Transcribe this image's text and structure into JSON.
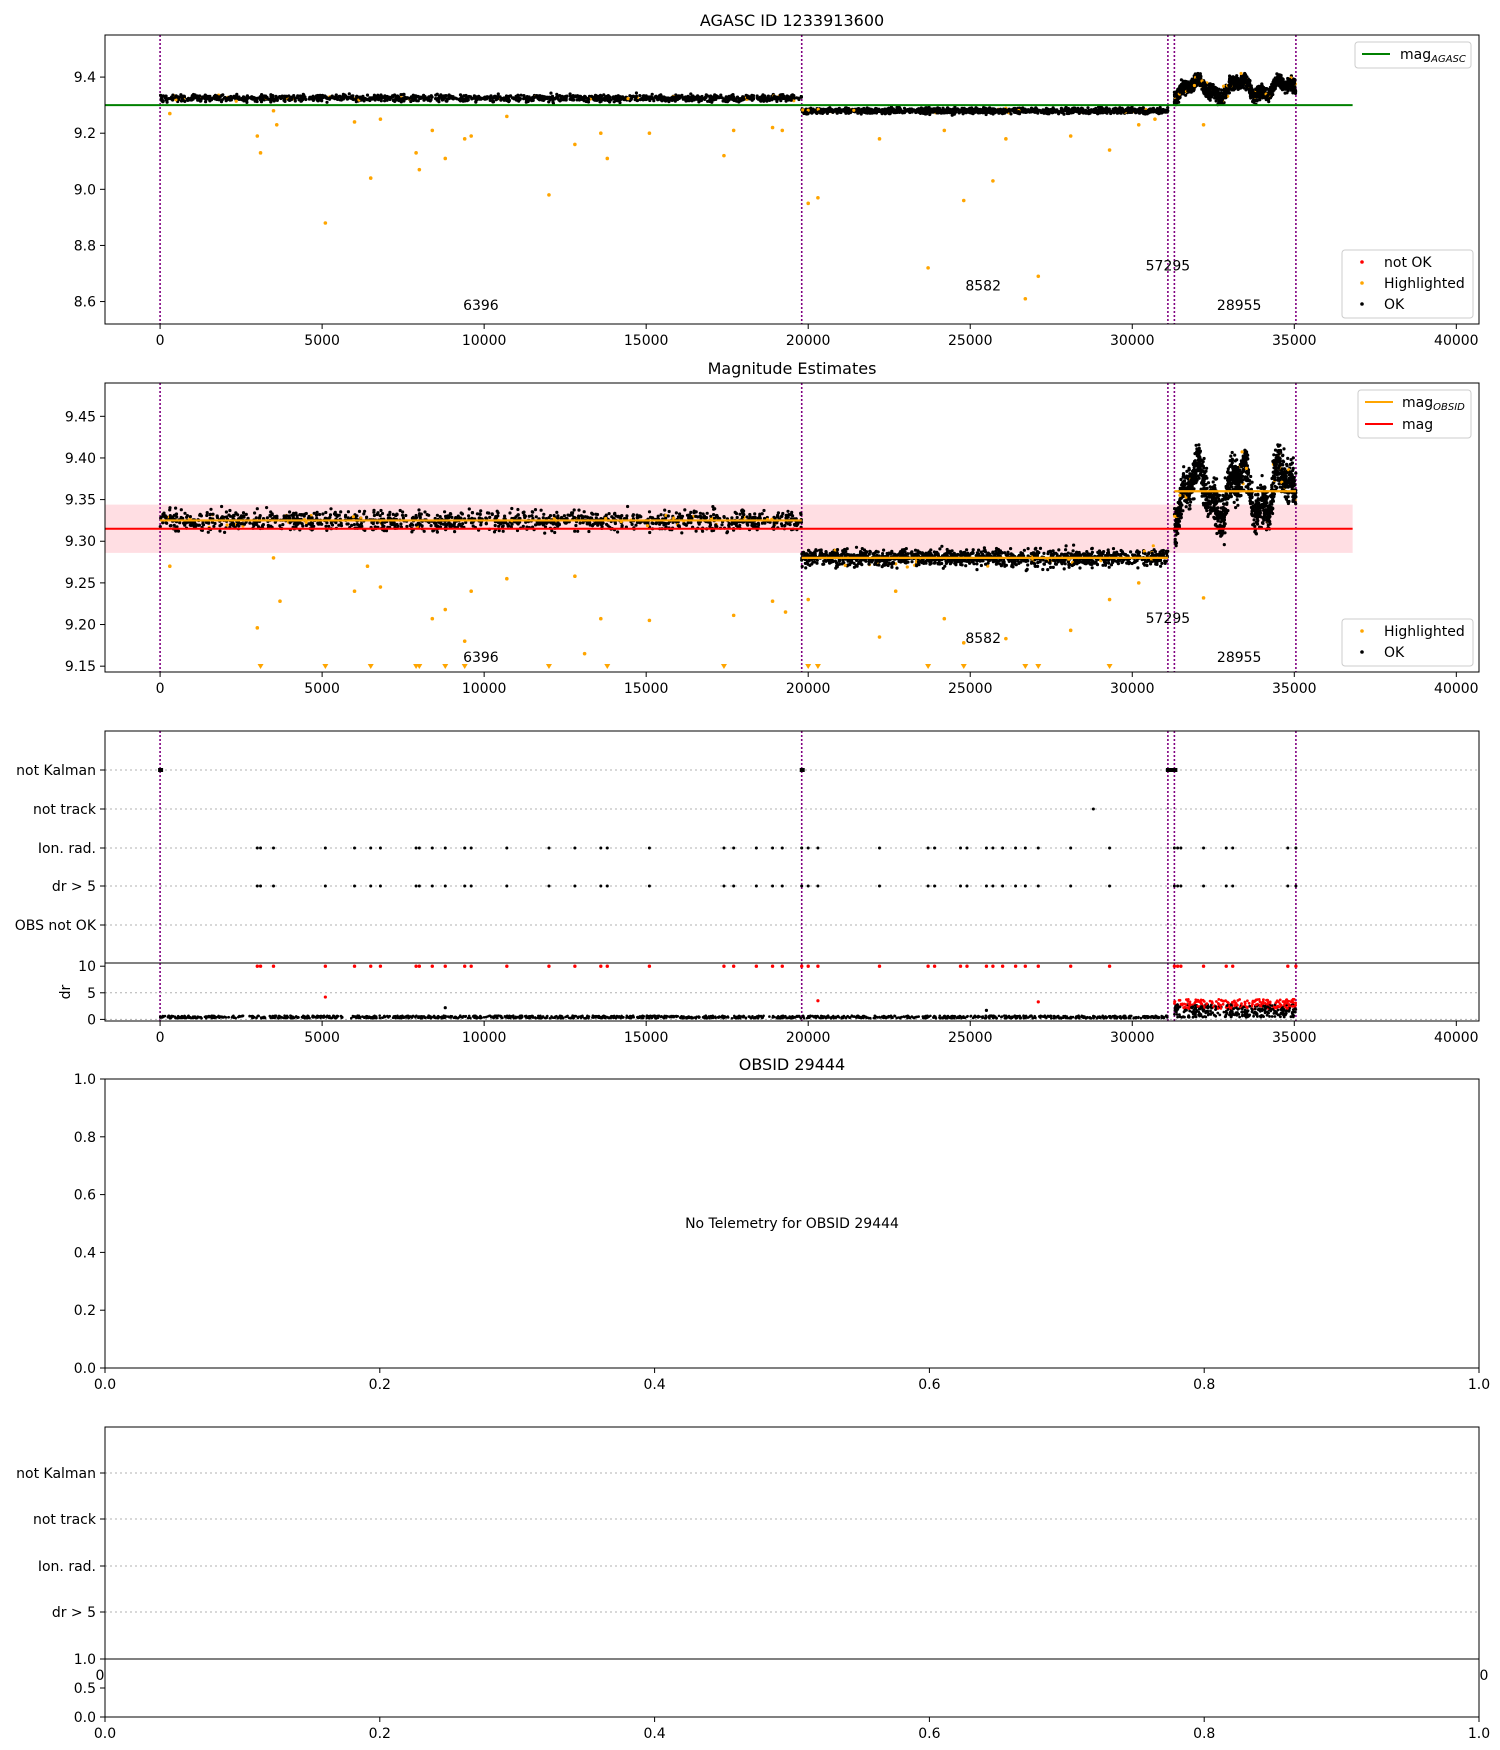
{
  "figure": {
    "vlines": [
      0,
      19800,
      31100,
      31300,
      35050
    ],
    "obsid_labels": [
      {
        "x": 9900,
        "y_mag": 8.57,
        "y_est": 9.155,
        "text": "6396"
      },
      {
        "x": 25400,
        "y_mag": 8.64,
        "y_est": 9.178,
        "text": "8582"
      },
      {
        "x": 31100,
        "y_mag": 8.71,
        "y_est": 9.202,
        "text": "57295"
      },
      {
        "x": 33300,
        "y_mag": 8.57,
        "y_est": 9.155,
        "text": "28955"
      }
    ],
    "colors": {
      "ok": "#000000",
      "highlighted": "#ffa500",
      "not_ok": "#ff0000",
      "agasc_line": "#008000",
      "mean_line": "#ff0000",
      "band": "#ffb6c1",
      "vline": "#800080"
    }
  },
  "chart_data": [
    {
      "type": "scatter",
      "title": "AGASC ID 1233913600",
      "xlim": [
        -1700,
        40700
      ],
      "ylim": [
        8.52,
        9.55
      ],
      "x_ticks": [
        0,
        5000,
        10000,
        15000,
        20000,
        25000,
        30000,
        35000,
        40000
      ],
      "y_ticks": [
        "8.6",
        "8.8",
        "9.0",
        "9.2",
        "9.4"
      ],
      "segments": [
        {
          "x0": 0,
          "x1": 19800,
          "level": 9.325,
          "spread": 0.012
        },
        {
          "x0": 19800,
          "x1": 31100,
          "level": 9.28,
          "spread": 0.01
        },
        {
          "x0": 31300,
          "x1": 35050,
          "level": 9.36,
          "spread": 0.025
        }
      ],
      "hline": {
        "y": 9.3,
        "x0": -1700,
        "x1": 36800
      },
      "highlighted_outliers": [
        [
          300,
          9.27
        ],
        [
          3000,
          9.19
        ],
        [
          3100,
          9.13
        ],
        [
          3500,
          9.28
        ],
        [
          3600,
          9.23
        ],
        [
          5100,
          8.88
        ],
        [
          6000,
          9.24
        ],
        [
          6500,
          9.04
        ],
        [
          6800,
          9.25
        ],
        [
          7900,
          9.13
        ],
        [
          8000,
          9.07
        ],
        [
          8400,
          9.21
        ],
        [
          8800,
          9.11
        ],
        [
          9400,
          9.18
        ],
        [
          9600,
          9.19
        ],
        [
          10700,
          9.26
        ],
        [
          12000,
          8.98
        ],
        [
          12800,
          9.16
        ],
        [
          13600,
          9.2
        ],
        [
          13800,
          9.11
        ],
        [
          15100,
          9.2
        ],
        [
          17400,
          9.12
        ],
        [
          17700,
          9.21
        ],
        [
          18900,
          9.22
        ],
        [
          19200,
          9.21
        ],
        [
          20000,
          8.95
        ],
        [
          20300,
          8.97
        ],
        [
          22200,
          9.18
        ],
        [
          23700,
          8.72
        ],
        [
          24200,
          9.21
        ],
        [
          24800,
          8.96
        ],
        [
          25700,
          9.03
        ],
        [
          26100,
          9.18
        ],
        [
          26700,
          8.61
        ],
        [
          27100,
          8.69
        ],
        [
          28100,
          9.19
        ],
        [
          29300,
          9.14
        ],
        [
          30200,
          9.23
        ],
        [
          30700,
          9.25
        ],
        [
          32200,
          9.23
        ]
      ],
      "legend_lines": [
        {
          "label": "mag",
          "sub": "AGASC"
        }
      ],
      "legend_points": [
        "not OK",
        "Highlighted",
        "OK"
      ]
    },
    {
      "type": "scatter",
      "title": "Magnitude Estimates",
      "xlim": [
        -1700,
        40700
      ],
      "ylim": [
        9.143,
        9.49
      ],
      "x_ticks": [
        0,
        5000,
        10000,
        15000,
        20000,
        25000,
        30000,
        35000,
        40000
      ],
      "y_ticks": [
        "9.15",
        "9.20",
        "9.25",
        "9.30",
        "9.35",
        "9.40",
        "9.45"
      ],
      "obsid_means": [
        {
          "x0": 0,
          "x1": 19800,
          "y": 9.325
        },
        {
          "x0": 19800,
          "x1": 31100,
          "y": 9.28
        },
        {
          "x0": 31300,
          "x1": 35050,
          "y": 9.36
        }
      ],
      "mean": {
        "y": 9.315,
        "band": [
          9.286,
          9.344
        ],
        "x0": -1700,
        "x1": 36800
      },
      "highlighted_outliers": [
        [
          300,
          9.27
        ],
        [
          3000,
          9.196
        ],
        [
          3500,
          9.28
        ],
        [
          3700,
          9.228
        ],
        [
          6000,
          9.24
        ],
        [
          6400,
          9.27
        ],
        [
          6800,
          9.245
        ],
        [
          8400,
          9.207
        ],
        [
          8800,
          9.218
        ],
        [
          9400,
          9.18
        ],
        [
          9600,
          9.24
        ],
        [
          10700,
          9.255
        ],
        [
          12800,
          9.258
        ],
        [
          13100,
          9.165
        ],
        [
          13600,
          9.207
        ],
        [
          15100,
          9.205
        ],
        [
          17700,
          9.211
        ],
        [
          18900,
          9.228
        ],
        [
          19300,
          9.215
        ],
        [
          20000,
          9.23
        ],
        [
          22200,
          9.185
        ],
        [
          22700,
          9.24
        ],
        [
          24200,
          9.207
        ],
        [
          24800,
          9.178
        ],
        [
          26100,
          9.183
        ],
        [
          28100,
          9.193
        ],
        [
          29300,
          9.23
        ],
        [
          30200,
          9.25
        ],
        [
          32200,
          9.232
        ]
      ],
      "clipped_markers": [
        3100,
        5100,
        6500,
        7900,
        8000,
        8800,
        9400,
        12000,
        13800,
        17400,
        20000,
        20300,
        23700,
        24800,
        26700,
        27100,
        29300
      ],
      "legend_lines": [
        {
          "label": "mag",
          "sub": "OBSID"
        },
        {
          "label": "mag",
          "sub": ""
        }
      ],
      "legend_points": [
        "Highlighted",
        "OK"
      ]
    },
    {
      "type": "scatter",
      "title": "",
      "xlim": [
        -1700,
        40700
      ],
      "flag_labels": [
        "not Kalman",
        "not track",
        "Ion. rad.",
        "dr > 5",
        "OBS not OK"
      ],
      "flag_events": {
        "not Kalman": [
          0,
          19800,
          31100,
          31200,
          31300
        ],
        "not track": [
          28800
        ],
        "Ion. rad.": [
          3000,
          3100,
          3500,
          5100,
          6000,
          6500,
          6800,
          7900,
          8000,
          8400,
          8800,
          9400,
          9600,
          10700,
          12000,
          12800,
          13600,
          13800,
          15100,
          17400,
          17700,
          18400,
          18900,
          19200,
          19800,
          20000,
          20300,
          22200,
          23700,
          23900,
          24700,
          24900,
          25500,
          25700,
          26000,
          26400,
          26700,
          27100,
          28100,
          29300,
          31300,
          31400,
          31500,
          32200,
          32900,
          33100,
          34800,
          35050
        ],
        "dr > 5": [
          3000,
          3100,
          3500,
          5100,
          6000,
          6500,
          6800,
          7900,
          8000,
          8400,
          8800,
          9400,
          9600,
          10700,
          12000,
          12800,
          13600,
          13800,
          15100,
          17400,
          17700,
          18400,
          18900,
          19200,
          19800,
          20000,
          20300,
          22200,
          23700,
          23900,
          24700,
          24900,
          25500,
          25700,
          26000,
          26400,
          26700,
          27100,
          28100,
          29300,
          31300,
          31400,
          31500,
          32200,
          32900,
          33100,
          34800,
          35050
        ],
        "OBS not OK": []
      },
      "dr_ylabel": "dr",
      "dr_ylim": [
        -0.3,
        10.6
      ],
      "dr_y_ticks": [
        "0",
        "5",
        "10"
      ],
      "x_ticks": [
        0,
        5000,
        10000,
        15000,
        20000,
        25000,
        30000,
        35000,
        40000
      ]
    },
    {
      "type": "scatter",
      "title": "OBSID 29444",
      "message": "No Telemetry for OBSID 29444",
      "xlim": [
        0,
        1
      ],
      "ylim": [
        0,
        1
      ],
      "x_ticks": [
        "0.0",
        "0.2",
        "0.4",
        "0.6",
        "0.8",
        "1.0"
      ],
      "y_ticks": [
        "0.0",
        "0.2",
        "0.4",
        "0.6",
        "0.8",
        "1.0"
      ]
    },
    {
      "type": "scatter",
      "title": "",
      "flag_labels": [
        "not Kalman",
        "not track",
        "Ion. rad.",
        "dr > 5"
      ],
      "inner_ticks": {
        "left": "0",
        "right": "0"
      },
      "x_ticks": [
        "0.0",
        "0.2",
        "0.4",
        "0.6",
        "0.8",
        "1.0"
      ],
      "dr_y_ticks": [
        "0.0",
        "0.5",
        "1.0"
      ]
    }
  ]
}
